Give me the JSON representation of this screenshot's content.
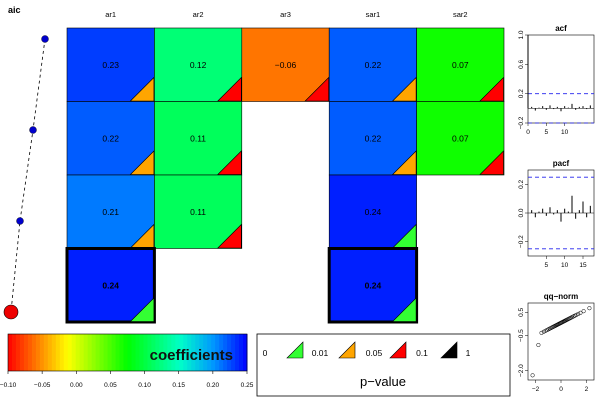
{
  "chart_data": [
    {
      "type": "heatmap",
      "title": "",
      "aic_label": "aic",
      "columns": [
        "ar1",
        "ar2",
        "ar3",
        "sar1",
        "sar2"
      ],
      "rows": [
        [
          {
            "col": "ar1",
            "value": "0.23",
            "p": "0.05"
          },
          {
            "col": "ar2",
            "value": "0.12",
            "p": "0.1"
          },
          {
            "col": "ar3",
            "value": "−0.06",
            "p": "0.1"
          },
          {
            "col": "sar1",
            "value": "0.22",
            "p": "0.05"
          },
          {
            "col": "sar2",
            "value": "0.07",
            "p": "0.1"
          }
        ],
        [
          {
            "col": "ar1",
            "value": "0.22",
            "p": "0.05"
          },
          {
            "col": "ar2",
            "value": "0.11",
            "p": "0.1"
          },
          {
            "col": "sar1",
            "value": "0.22",
            "p": "0.05"
          },
          {
            "col": "sar2",
            "value": "0.07",
            "p": "0.1"
          }
        ],
        [
          {
            "col": "ar1",
            "value": "0.21",
            "p": "0.05"
          },
          {
            "col": "ar2",
            "value": "0.11",
            "p": "0.1"
          },
          {
            "col": "sar1",
            "value": "0.24",
            "p": "0.01"
          }
        ],
        [
          {
            "col": "ar1",
            "value": "0.24",
            "p": "0.01",
            "selected": true
          },
          {
            "col": "sar1",
            "value": "0.24",
            "p": "0.01",
            "selected": true
          }
        ]
      ],
      "aic_points": [
        3,
        2,
        1,
        0
      ],
      "colorbar": {
        "label": "coefficients",
        "range": [
          -0.1,
          0.25
        ],
        "ticks": [
          "−0.10",
          "−0.05",
          "0.00",
          "0.05",
          "0.10",
          "0.15",
          "0.20",
          "0.25"
        ]
      },
      "pvalue_legend": {
        "label": "p−value",
        "breaks": [
          "0",
          "0.01",
          "0.05",
          "0.1",
          "1"
        ],
        "colors": [
          "#33ff33",
          "#ffa500",
          "#ff0000",
          "#000000"
        ]
      }
    },
    {
      "type": "bar",
      "title": "acf",
      "ylim": [
        -0.2,
        1.0
      ],
      "yticks": [
        "−0.2",
        "0.2",
        "0.6",
        "1.0"
      ],
      "xticks": [
        "0",
        "5",
        "10"
      ],
      "xlim": [
        0,
        18
      ],
      "ci": 0.2,
      "lags": [
        0,
        1,
        2,
        3,
        4,
        5,
        6,
        7,
        8,
        9,
        10,
        11,
        12,
        13,
        14,
        15,
        16,
        17
      ],
      "values": [
        1.0,
        0.02,
        -0.03,
        0.01,
        0.03,
        -0.02,
        0.04,
        -0.01,
        0.02,
        -0.04,
        0.03,
        0.01,
        0.06,
        -0.02,
        0.02,
        0.03,
        -0.01,
        0.04
      ]
    },
    {
      "type": "bar",
      "title": "pacf",
      "ylim": [
        -0.3,
        0.3
      ],
      "yticks": [
        "−0.2",
        "0.0",
        "0.2"
      ],
      "xticks": [
        "5",
        "10",
        "15"
      ],
      "xlim": [
        0,
        18
      ],
      "ci": 0.25,
      "lags": [
        1,
        2,
        3,
        4,
        5,
        6,
        7,
        8,
        9,
        10,
        11,
        12,
        13,
        14,
        15,
        16,
        17
      ],
      "values": [
        0.02,
        -0.03,
        0.01,
        0.03,
        -0.02,
        0.04,
        -0.01,
        0.02,
        -0.06,
        0.03,
        0.01,
        0.12,
        -0.04,
        0.02,
        0.08,
        -0.03,
        0.05
      ]
    },
    {
      "type": "scatter",
      "title": "qq−norm",
      "xticks": [
        "−2",
        "0",
        "2"
      ],
      "yticks": [
        "−2.0",
        "−0.5",
        "0.5"
      ],
      "xlim": [
        -2.6,
        2.6
      ],
      "ylim": [
        -2.4,
        0.9
      ]
    }
  ]
}
